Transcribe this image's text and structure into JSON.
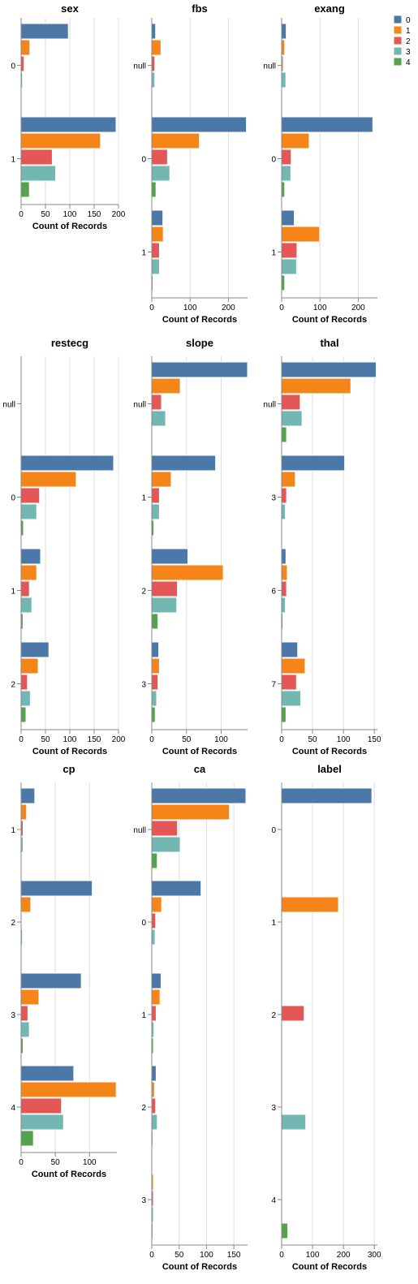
{
  "legend": {
    "categories": [
      "0",
      "1",
      "2",
      "3",
      "4"
    ],
    "colors": [
      "#4c78a8",
      "#f58518",
      "#e45756",
      "#72b7b2",
      "#54a24b"
    ]
  },
  "chart_data": [
    {
      "type": "bar",
      "title": "sex",
      "xlabel": "Count of Records",
      "xlim": [
        0,
        200
      ],
      "ticks": [
        "0",
        "50",
        "100",
        "150",
        "200"
      ],
      "categories": [
        "0",
        "1"
      ],
      "series": [
        {
          "name": "0",
          "values": [
            97,
            195
          ]
        },
        {
          "name": "1",
          "values": [
            18,
            163
          ]
        },
        {
          "name": "2",
          "values": [
            6,
            64
          ]
        },
        {
          "name": "3",
          "values": [
            3,
            71
          ]
        },
        {
          "name": "4",
          "values": [
            1,
            17
          ]
        }
      ]
    },
    {
      "type": "bar",
      "title": "fbs",
      "xlabel": "Count of Records",
      "xlim": [
        0,
        250
      ],
      "ticks": [
        "0",
        "100",
        "200"
      ],
      "categories": [
        "null",
        "0",
        "1"
      ],
      "series": [
        {
          "name": "0",
          "values": [
            10,
            247,
            29
          ]
        },
        {
          "name": "1",
          "values": [
            24,
            124,
            30
          ]
        },
        {
          "name": "2",
          "values": [
            8,
            41,
            20
          ]
        },
        {
          "name": "3",
          "values": [
            8,
            47,
            20
          ]
        },
        {
          "name": "4",
          "values": [
            2,
            11,
            3
          ]
        }
      ]
    },
    {
      "type": "bar",
      "title": "exang",
      "xlabel": "Count of Records",
      "xlim": [
        0,
        250
      ],
      "ticks": [
        "0",
        "100",
        "200"
      ],
      "categories": [
        "null",
        "0",
        "1"
      ],
      "series": [
        {
          "name": "0",
          "values": [
            12,
            238,
            33
          ]
        },
        {
          "name": "1",
          "values": [
            8,
            72,
            99
          ]
        },
        {
          "name": "2",
          "values": [
            4,
            25,
            40
          ]
        },
        {
          "name": "3",
          "values": [
            11,
            24,
            39
          ]
        },
        {
          "name": "4",
          "values": [
            1,
            8,
            8
          ]
        }
      ]
    },
    {
      "type": "bar",
      "title": "restecg",
      "xlabel": "Count of Records",
      "xlim": [
        0,
        200
      ],
      "ticks": [
        "0",
        "50",
        "100",
        "150",
        "200"
      ],
      "categories": [
        "null",
        "0",
        "1",
        "2"
      ],
      "series": [
        {
          "name": "0",
          "values": [
            0,
            190,
            40,
            57
          ]
        },
        {
          "name": "1",
          "values": [
            1,
            113,
            32,
            35
          ]
        },
        {
          "name": "2",
          "values": [
            0,
            38,
            17,
            13
          ]
        },
        {
          "name": "3",
          "values": [
            0,
            32,
            22,
            19
          ]
        },
        {
          "name": "4",
          "values": [
            0,
            5,
            4,
            10
          ]
        }
      ]
    },
    {
      "type": "bar",
      "title": "slope",
      "xlabel": "Count of Records",
      "xlim": [
        0,
        138
      ],
      "ticks": [
        "0",
        "50",
        "100"
      ],
      "categories": [
        "null",
        "1",
        "2",
        "3"
      ],
      "series": [
        {
          "name": "0",
          "values": [
            138,
            92,
            52,
            10
          ]
        },
        {
          "name": "1",
          "values": [
            41,
            28,
            103,
            11
          ]
        },
        {
          "name": "2",
          "values": [
            14,
            11,
            37,
            9
          ]
        },
        {
          "name": "3",
          "values": [
            20,
            11,
            36,
            7
          ]
        },
        {
          "name": "4",
          "values": [
            1,
            3,
            9,
            5
          ]
        }
      ]
    },
    {
      "type": "bar",
      "title": "thal",
      "xlabel": "Count of Records",
      "xlim": [
        0,
        155
      ],
      "ticks": [
        "0",
        "50",
        "100",
        "150"
      ],
      "categories": [
        "null",
        "3",
        "6",
        "7"
      ],
      "series": [
        {
          "name": "0",
          "values": [
            153,
            102,
            7,
            26
          ]
        },
        {
          "name": "1",
          "values": [
            112,
            22,
            9,
            38
          ]
        },
        {
          "name": "2",
          "values": [
            30,
            8,
            8,
            24
          ]
        },
        {
          "name": "3",
          "values": [
            33,
            6,
            6,
            31
          ]
        },
        {
          "name": "4",
          "values": [
            8,
            1,
            2,
            7
          ]
        }
      ]
    },
    {
      "type": "bar",
      "title": "cp",
      "xlabel": "Count of Records",
      "xlim": [
        0,
        140
      ],
      "ticks": [
        "0",
        "50",
        "100"
      ],
      "categories": [
        "1",
        "2",
        "3",
        "4"
      ],
      "series": [
        {
          "name": "0",
          "values": [
            20,
            104,
            88,
            77
          ]
        },
        {
          "name": "1",
          "values": [
            8,
            14,
            26,
            139
          ]
        },
        {
          "name": "2",
          "values": [
            3,
            1,
            10,
            59
          ]
        },
        {
          "name": "3",
          "values": [
            3,
            2,
            12,
            62
          ]
        },
        {
          "name": "4",
          "values": [
            1,
            0,
            3,
            18
          ]
        }
      ]
    },
    {
      "type": "bar",
      "title": "ca",
      "xlabel": "Count of Records",
      "xlim": [
        0,
        175
      ],
      "ticks": [
        "0",
        "50",
        "100",
        "150"
      ],
      "categories": [
        "null",
        "0",
        "1",
        "2",
        "3"
      ],
      "series": [
        {
          "name": "0",
          "values": [
            172,
            90,
            17,
            8,
            1
          ]
        },
        {
          "name": "1",
          "values": [
            142,
            18,
            15,
            5,
            3
          ]
        },
        {
          "name": "2",
          "values": [
            47,
            7,
            8,
            7,
            3
          ]
        },
        {
          "name": "3",
          "values": [
            52,
            6,
            4,
            10,
            3
          ]
        },
        {
          "name": "4",
          "values": [
            10,
            1,
            3,
            2,
            2
          ]
        }
      ]
    },
    {
      "type": "bar",
      "title": "label",
      "xlabel": "Count of Records",
      "xlim": [
        0,
        310
      ],
      "ticks": [
        "0",
        "100",
        "200",
        "300"
      ],
      "categories": [
        "0",
        "1",
        "2",
        "3",
        "4"
      ],
      "series": [
        {
          "name": "0",
          "values": [
            292,
            0,
            0,
            0,
            0
          ]
        },
        {
          "name": "1",
          "values": [
            0,
            184,
            0,
            0,
            0
          ]
        },
        {
          "name": "2",
          "values": [
            0,
            0,
            73,
            0,
            0
          ]
        },
        {
          "name": "3",
          "values": [
            0,
            0,
            0,
            78,
            0
          ]
        },
        {
          "name": "4",
          "values": [
            0,
            0,
            0,
            0,
            20
          ]
        }
      ]
    }
  ]
}
